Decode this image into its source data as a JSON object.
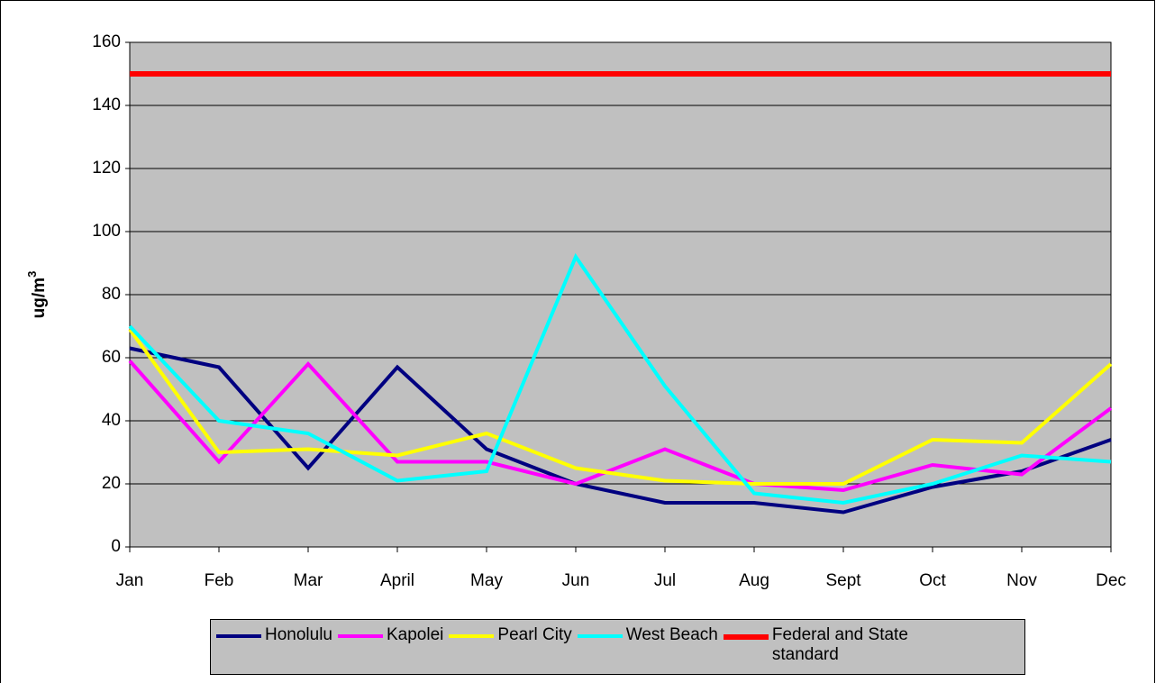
{
  "chart_data": {
    "type": "line",
    "y_label": {
      "text": "ug/m",
      "superscript": "3"
    },
    "categories": [
      "Jan",
      "Feb",
      "Mar",
      "April",
      "May",
      "Jun",
      "Jul",
      "Aug",
      "Sept",
      "Oct",
      "Nov",
      "Dec"
    ],
    "series": [
      {
        "name": "Honolulu",
        "color": "#000080",
        "values": [
          63,
          57,
          25,
          57,
          31,
          20,
          14,
          14,
          11,
          19,
          24,
          34
        ]
      },
      {
        "name": "Kapolei",
        "color": "#ff00ff",
        "values": [
          59,
          27,
          58,
          27,
          27,
          20,
          31,
          20,
          18,
          26,
          23,
          44
        ]
      },
      {
        "name": "Pearl City",
        "color": "#ffff00",
        "values": [
          69,
          30,
          31,
          29,
          36,
          25,
          21,
          20,
          20,
          34,
          33,
          58
        ]
      },
      {
        "name": "West Beach",
        "color": "#00ffff",
        "values": [
          70,
          40,
          36,
          21,
          24,
          92,
          51,
          17,
          14,
          20,
          29,
          27
        ]
      },
      {
        "name": "Federal and State standard",
        "color": "#ff0000",
        "values": [
          150,
          150,
          150,
          150,
          150,
          150,
          150,
          150,
          150,
          150,
          150,
          150
        ]
      }
    ],
    "ylim": [
      0,
      160
    ],
    "yticks": [
      0,
      20,
      40,
      60,
      80,
      100,
      120,
      140,
      160
    ],
    "grid": true,
    "legend": "bottom"
  }
}
